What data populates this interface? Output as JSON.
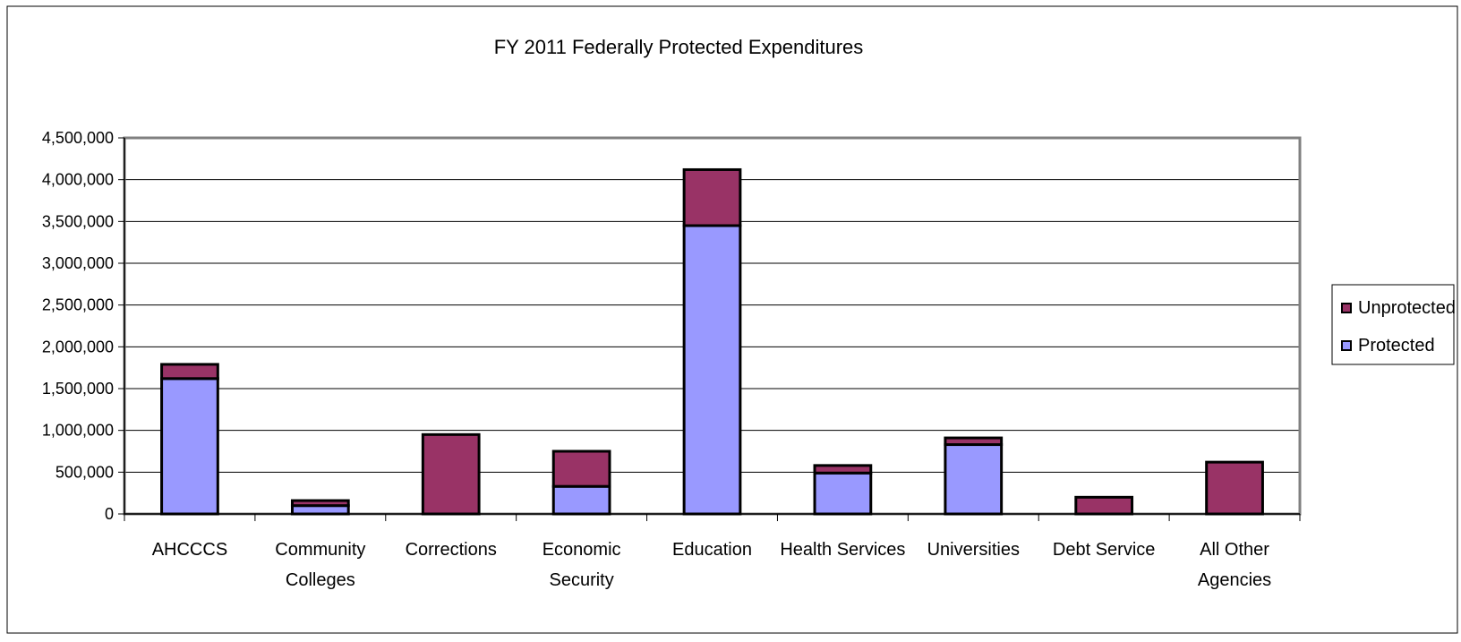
{
  "chart_data": {
    "type": "bar",
    "stacked": true,
    "title": "FY 2011 Federally Protected Expenditures",
    "xlabel": "",
    "ylabel": "",
    "ylim": [
      0,
      4500000
    ],
    "y_ticks": [
      0,
      500000,
      1000000,
      1500000,
      2000000,
      2500000,
      3000000,
      3500000,
      4000000,
      4500000
    ],
    "y_tick_labels": [
      "0",
      "500,000",
      "1,000,000",
      "1,500,000",
      "2,000,000",
      "2,500,000",
      "3,000,000",
      "3,500,000",
      "4,000,000",
      "4,500,000"
    ],
    "grid": true,
    "legend_position": "right",
    "categories": [
      [
        "AHCCCS"
      ],
      [
        "Community",
        "Colleges"
      ],
      [
        "Corrections"
      ],
      [
        "Economic",
        "Security"
      ],
      [
        "Education"
      ],
      [
        "Health Services"
      ],
      [
        "Universities"
      ],
      [
        "Debt Service"
      ],
      [
        "All Other",
        "Agencies"
      ]
    ],
    "series": [
      {
        "name": "Protected",
        "color": "#9999ff",
        "values": [
          1620000,
          100000,
          0,
          330000,
          3450000,
          490000,
          830000,
          0,
          0
        ]
      },
      {
        "name": "Unprotected",
        "color": "#993366",
        "values": [
          170000,
          60000,
          950000,
          420000,
          670000,
          90000,
          80000,
          200000,
          620000
        ]
      }
    ],
    "legend_order": [
      "Unprotected",
      "Protected"
    ]
  }
}
